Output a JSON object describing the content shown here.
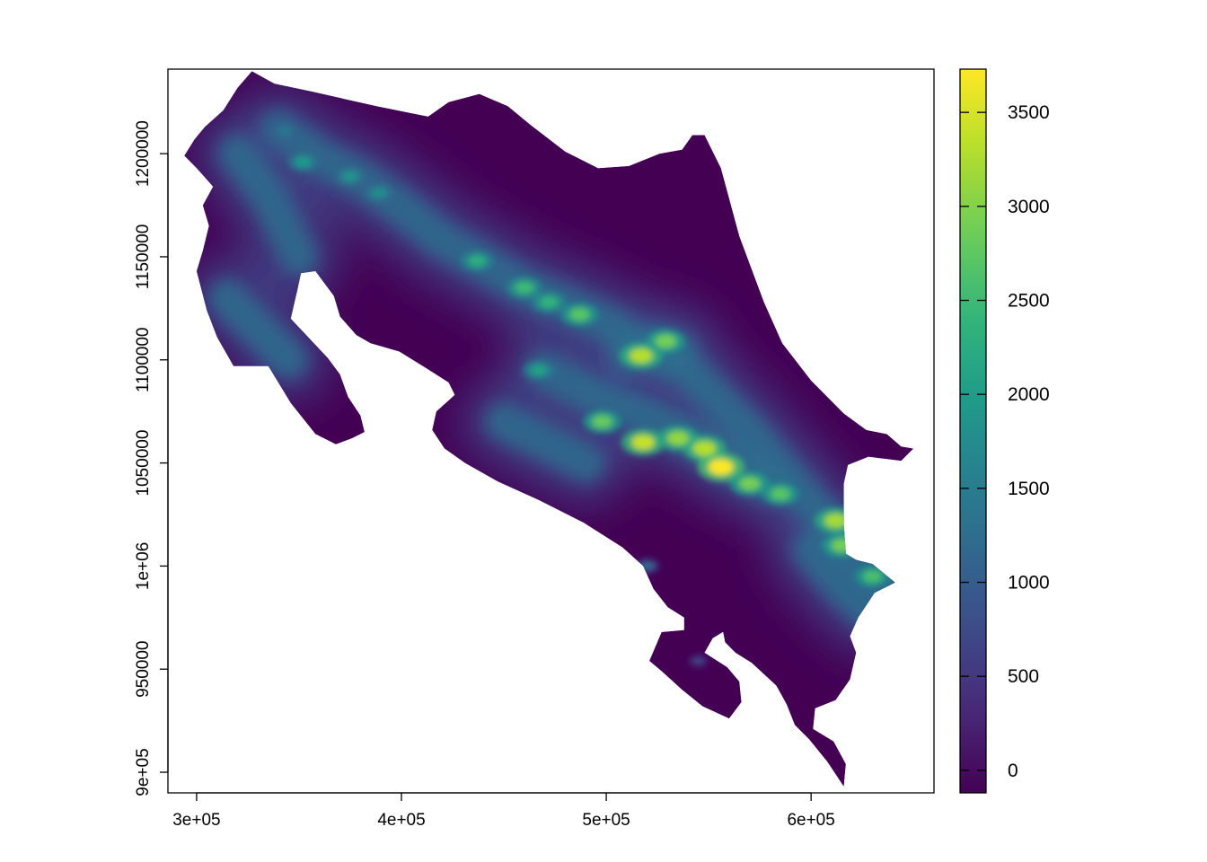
{
  "chart_data": {
    "type": "heatmap",
    "subject": "Elevation raster map",
    "title": "",
    "xlabel": "",
    "ylabel": "",
    "xlim": [
      286000,
      660000
    ],
    "ylim": [
      890000,
      1241000
    ],
    "x_ticks": [
      {
        "value": 300000,
        "label": "3e+05"
      },
      {
        "value": 400000,
        "label": "4e+05"
      },
      {
        "value": 500000,
        "label": "5e+05"
      },
      {
        "value": 600000,
        "label": "6e+05"
      }
    ],
    "y_ticks": [
      {
        "value": 900000,
        "label": "9e+05"
      },
      {
        "value": 950000,
        "label": "950000"
      },
      {
        "value": 1000000,
        "label": "1e+06"
      },
      {
        "value": 1050000,
        "label": "1050000"
      },
      {
        "value": 1100000,
        "label": "1100000"
      },
      {
        "value": 1150000,
        "label": "1150000"
      },
      {
        "value": 1200000,
        "label": "1200000"
      }
    ],
    "colorbar": {
      "palette": "viridis",
      "range": [
        -120,
        3730
      ],
      "ticks": [
        {
          "value": 0,
          "label": "0"
        },
        {
          "value": 500,
          "label": "500"
        },
        {
          "value": 1000,
          "label": "1000"
        },
        {
          "value": 1500,
          "label": "1500"
        },
        {
          "value": 2000,
          "label": "2000"
        },
        {
          "value": 2500,
          "label": "2500"
        },
        {
          "value": 3000,
          "label": "3000"
        },
        {
          "value": 3500,
          "label": "3500"
        }
      ],
      "colors": [
        "#440154",
        "#482878",
        "#3e4a89",
        "#31688e",
        "#26828e",
        "#1f9e89",
        "#35b779",
        "#6ece58",
        "#b5de2b",
        "#fde725"
      ]
    },
    "land_outline": [
      [
        299000,
        1207000
      ],
      [
        304000,
        1213000
      ],
      [
        313000,
        1221000
      ],
      [
        320000,
        1232000
      ],
      [
        327000,
        1240000
      ],
      [
        338000,
        1234000
      ],
      [
        357000,
        1230000
      ],
      [
        388000,
        1223000
      ],
      [
        413000,
        1218000
      ],
      [
        423000,
        1225000
      ],
      [
        438000,
        1229000
      ],
      [
        452000,
        1223000
      ],
      [
        463000,
        1214000
      ],
      [
        480000,
        1201000
      ],
      [
        496000,
        1193000
      ],
      [
        511000,
        1194000
      ],
      [
        526000,
        1200000
      ],
      [
        537000,
        1202000
      ],
      [
        542000,
        1209000
      ],
      [
        548000,
        1209000
      ],
      [
        556000,
        1193000
      ],
      [
        565000,
        1160000
      ],
      [
        577000,
        1128000
      ],
      [
        586000,
        1108000
      ],
      [
        600000,
        1090000
      ],
      [
        616000,
        1074000
      ],
      [
        627000,
        1066000
      ],
      [
        637000,
        1064000
      ],
      [
        644000,
        1058000
      ],
      [
        650000,
        1057000
      ],
      [
        644000,
        1051000
      ],
      [
        628000,
        1053000
      ],
      [
        618000,
        1049000
      ],
      [
        616000,
        1040000
      ],
      [
        616000,
        1020000
      ],
      [
        617000,
        1006000
      ],
      [
        622000,
        1003000
      ],
      [
        630000,
        1001000
      ],
      [
        641000,
        992000
      ],
      [
        631000,
        987000
      ],
      [
        623000,
        975000
      ],
      [
        619000,
        966000
      ],
      [
        622000,
        958000
      ],
      [
        619000,
        945000
      ],
      [
        612000,
        935000
      ],
      [
        602000,
        931000
      ],
      [
        601000,
        921000
      ],
      [
        611000,
        915000
      ],
      [
        617000,
        904000
      ],
      [
        616000,
        893000
      ],
      [
        608000,
        905000
      ],
      [
        599000,
        916000
      ],
      [
        592000,
        923000
      ],
      [
        588000,
        933000
      ],
      [
        583000,
        942000
      ],
      [
        571000,
        953000
      ],
      [
        563000,
        958000
      ],
      [
        558000,
        963000
      ],
      [
        557000,
        968000
      ],
      [
        552000,
        965000
      ],
      [
        548000,
        958000
      ],
      [
        559000,
        951000
      ],
      [
        565000,
        944000
      ],
      [
        566000,
        934000
      ],
      [
        560000,
        926000
      ],
      [
        547000,
        932000
      ],
      [
        537000,
        940000
      ],
      [
        527000,
        949000
      ],
      [
        521000,
        954000
      ],
      [
        527000,
        968000
      ],
      [
        538000,
        969000
      ],
      [
        538000,
        975000
      ],
      [
        530000,
        980000
      ],
      [
        523000,
        989000
      ],
      [
        518000,
        1000000
      ],
      [
        508000,
        1009000
      ],
      [
        489000,
        1021000
      ],
      [
        467000,
        1032000
      ],
      [
        447000,
        1041000
      ],
      [
        431000,
        1050000
      ],
      [
        421000,
        1057000
      ],
      [
        415000,
        1066000
      ],
      [
        417000,
        1075000
      ],
      [
        426000,
        1083000
      ],
      [
        423000,
        1089000
      ],
      [
        412000,
        1096000
      ],
      [
        399000,
        1104000
      ],
      [
        385000,
        1108000
      ],
      [
        378000,
        1112000
      ],
      [
        370000,
        1121000
      ],
      [
        367000,
        1131000
      ],
      [
        358000,
        1143000
      ],
      [
        351000,
        1142000
      ],
      [
        349000,
        1133000
      ],
      [
        346000,
        1120000
      ],
      [
        364000,
        1101000
      ],
      [
        370000,
        1093000
      ],
      [
        374000,
        1082000
      ],
      [
        380000,
        1073000
      ],
      [
        382000,
        1065000
      ],
      [
        376000,
        1062000
      ],
      [
        368000,
        1059000
      ],
      [
        358000,
        1064000
      ],
      [
        346000,
        1079000
      ],
      [
        335000,
        1097000
      ],
      [
        318000,
        1097000
      ],
      [
        310000,
        1111000
      ],
      [
        305000,
        1124000
      ],
      [
        300000,
        1143000
      ],
      [
        303000,
        1153000
      ],
      [
        306000,
        1165000
      ],
      [
        303000,
        1175000
      ],
      [
        308000,
        1184000
      ],
      [
        300000,
        1193000
      ],
      [
        294000,
        1199000
      ]
    ],
    "ridge_segments": [
      [
        [
          340000,
          1212000
        ],
        [
          360000,
          1198000
        ],
        [
          380000,
          1188000
        ],
        [
          400000,
          1174000
        ],
        [
          420000,
          1158000
        ],
        [
          440000,
          1147000
        ],
        [
          460000,
          1135000
        ],
        [
          480000,
          1127000
        ],
        [
          500000,
          1118000
        ],
        [
          520000,
          1105000
        ],
        [
          540000,
          1095000
        ],
        [
          555000,
          1080000
        ],
        [
          570000,
          1065000
        ],
        [
          585000,
          1047000
        ],
        [
          600000,
          1030000
        ],
        [
          615000,
          1015000
        ],
        [
          630000,
          1000000
        ],
        [
          640000,
          990000
        ]
      ],
      [
        [
          470000,
          1095000
        ],
        [
          495000,
          1082000
        ],
        [
          520000,
          1072000
        ],
        [
          545000,
          1060000
        ],
        [
          560000,
          1050000
        ],
        [
          580000,
          1040000
        ]
      ],
      [
        [
          510000,
          1102000
        ],
        [
          525000,
          1108000
        ],
        [
          535000,
          1105000
        ]
      ],
      [
        [
          320000,
          1200000
        ],
        [
          335000,
          1180000
        ],
        [
          350000,
          1150000
        ]
      ],
      [
        [
          315000,
          1130000
        ],
        [
          330000,
          1115000
        ],
        [
          345000,
          1100000
        ]
      ],
      [
        [
          450000,
          1070000
        ],
        [
          470000,
          1060000
        ],
        [
          490000,
          1050000
        ]
      ],
      [
        [
          600000,
          1008000
        ],
        [
          615000,
          990000
        ],
        [
          628000,
          978000
        ]
      ]
    ],
    "peaks": [
      {
        "x": 352000,
        "y": 1196000,
        "value": 2000
      },
      {
        "x": 375000,
        "y": 1189000,
        "value": 1900
      },
      {
        "x": 389000,
        "y": 1181000,
        "value": 1800
      },
      {
        "x": 343000,
        "y": 1211000,
        "value": 1500
      },
      {
        "x": 460000,
        "y": 1135000,
        "value": 2500
      },
      {
        "x": 472000,
        "y": 1128000,
        "value": 2400
      },
      {
        "x": 487000,
        "y": 1122000,
        "value": 2700
      },
      {
        "x": 517000,
        "y": 1102000,
        "value": 3300
      },
      {
        "x": 529000,
        "y": 1109000,
        "value": 2900
      },
      {
        "x": 518000,
        "y": 1060000,
        "value": 3400
      },
      {
        "x": 535000,
        "y": 1062000,
        "value": 3100
      },
      {
        "x": 548000,
        "y": 1057000,
        "value": 3300
      },
      {
        "x": 556000,
        "y": 1048000,
        "value": 3720
      },
      {
        "x": 570000,
        "y": 1040000,
        "value": 2900
      },
      {
        "x": 585000,
        "y": 1035000,
        "value": 2700
      },
      {
        "x": 612000,
        "y": 1022000,
        "value": 3200
      },
      {
        "x": 615000,
        "y": 1010000,
        "value": 2900
      },
      {
        "x": 630000,
        "y": 995000,
        "value": 2600
      },
      {
        "x": 498000,
        "y": 1070000,
        "value": 2800
      },
      {
        "x": 467000,
        "y": 1095000,
        "value": 2100
      },
      {
        "x": 437000,
        "y": 1148000,
        "value": 2300
      },
      {
        "x": 520000,
        "y": 1000000,
        "value": 1200
      },
      {
        "x": 545000,
        "y": 954000,
        "value": 700
      }
    ],
    "grid": false,
    "legend_position": "right"
  }
}
